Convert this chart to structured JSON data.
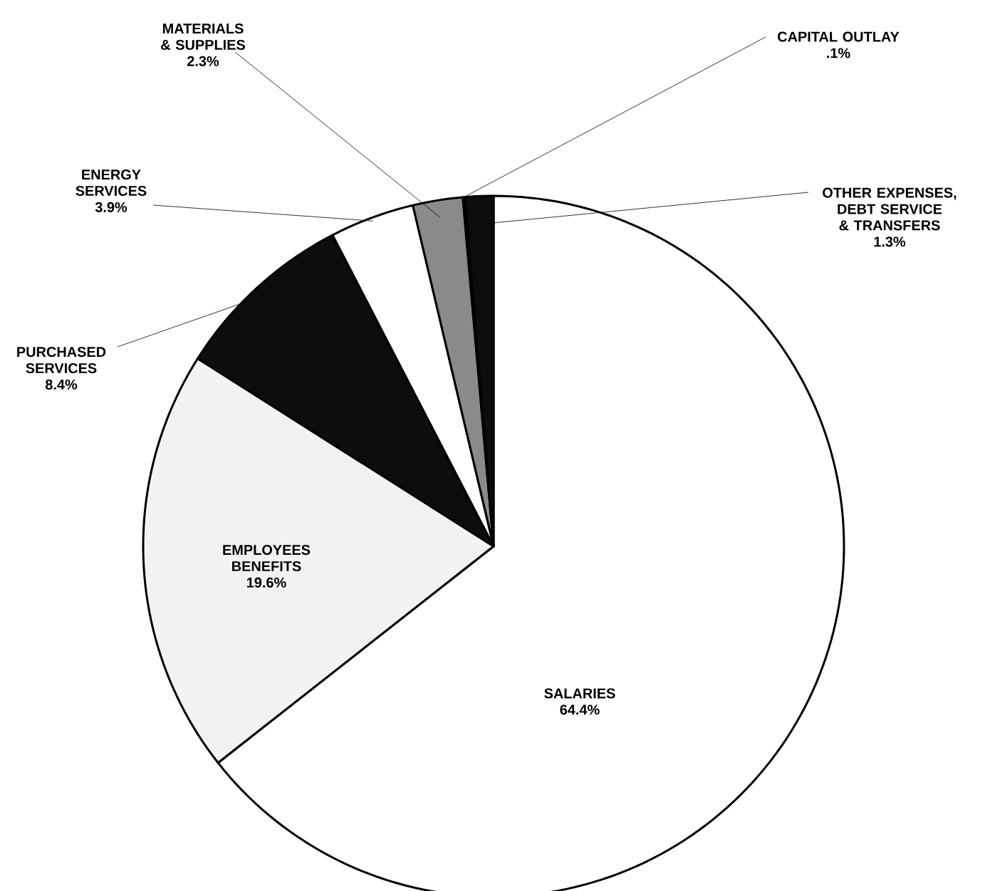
{
  "chart_data": {
    "type": "pie",
    "categories": [
      "SALARIES",
      "EMPLOYEES BENEFITS",
      "PURCHASED SERVICES",
      "ENERGY SERVICES",
      "MATERIALS & SUPPLIES",
      "CAPITAL OUTLAY",
      "OTHER EXPENSES, DEBT SERVICE & TRANSFERS"
    ],
    "values": [
      64.4,
      19.6,
      8.4,
      3.9,
      2.3,
      0.1,
      1.3
    ],
    "value_labels": [
      "64.4%",
      "19.6%",
      "8.4%",
      "3.9%",
      "2.3%",
      ".1%",
      "1.3%"
    ],
    "colors": [
      "#ffffff",
      "#f2f2f2",
      "#0d0d0d",
      "#ffffff",
      "#8a8a8a",
      "#ffffff",
      "#0d0d0d"
    ]
  }
}
